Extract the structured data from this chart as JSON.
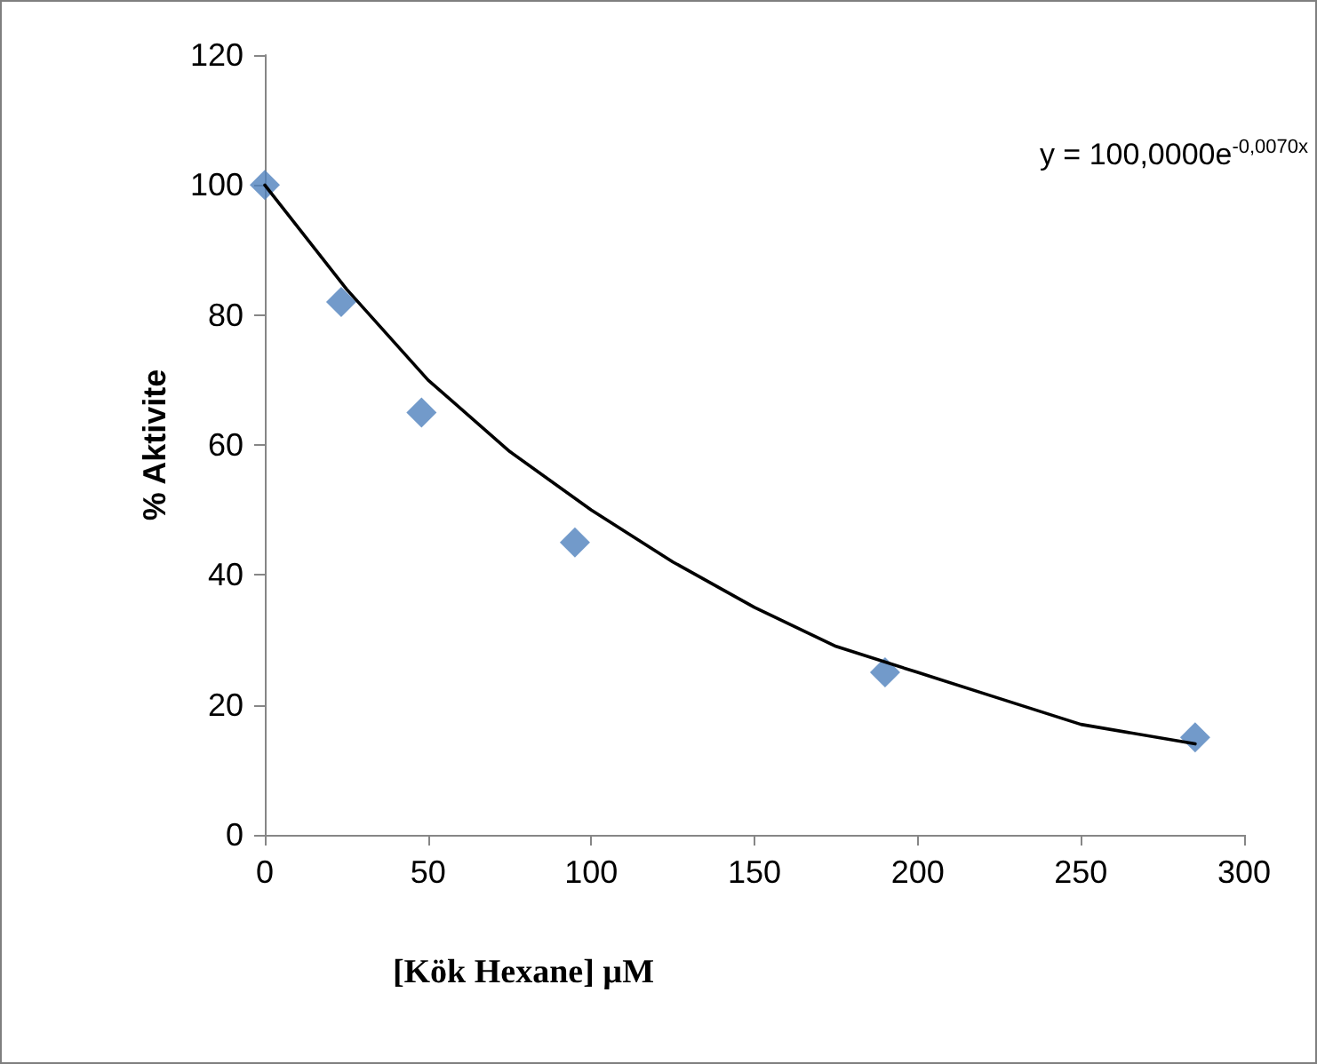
{
  "chart_data": {
    "type": "scatter",
    "xlabel": "[Kök Hexane] µM",
    "ylabel": "% Aktivite",
    "annotations": [
      "y = 100,0000e$^{-0,0070x}$"
    ],
    "x": [
      0,
      23.4,
      48,
      95,
      190,
      285
    ],
    "series": [
      {
        "color": "#4f81bd",
        "values": [
          100,
          82,
          65,
          45,
          25,
          15
        ],
        "marker": "diamond"
      },
      {
        "type": "line",
        "color": "#000000",
        "x": [
          0,
          25,
          50,
          75,
          100,
          125,
          150,
          175,
          200,
          225,
          250,
          285
        ],
        "values": [
          100,
          84,
          70,
          59,
          50,
          42,
          35,
          29,
          25,
          21,
          17,
          14
        ],
        "marker": "none",
        "line_style": "solid"
      }
    ],
    "xlim": [
      0,
      300
    ],
    "xticks": [
      0,
      50,
      100,
      150,
      200,
      250,
      300
    ],
    "ylim": [
      0,
      120
    ],
    "yticks": [
      0,
      20,
      40,
      60,
      80,
      100,
      120
    ]
  }
}
